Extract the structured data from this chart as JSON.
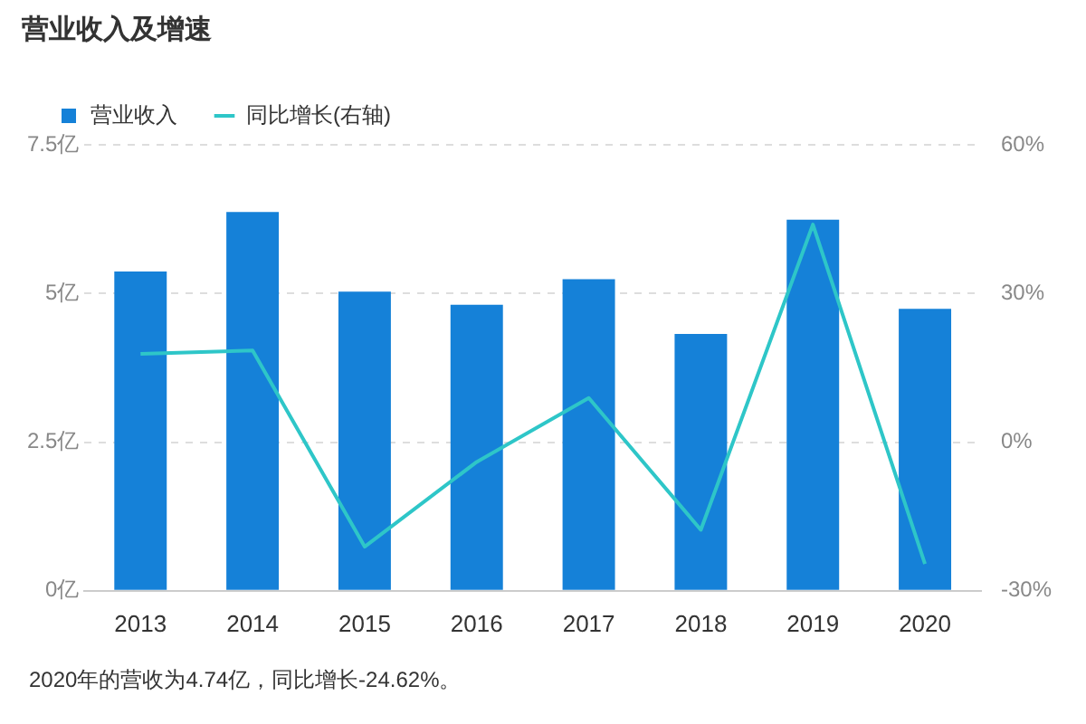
{
  "chart_data": {
    "type": "bar",
    "title": "营业收入及增速",
    "categories": [
      "2013",
      "2014",
      "2015",
      "2016",
      "2017",
      "2018",
      "2019",
      "2020"
    ],
    "series": [
      {
        "name": "营业收入",
        "color": "#1581d8",
        "values": [
          5.37,
          6.37,
          5.03,
          4.81,
          5.24,
          4.32,
          6.24,
          4.74
        ]
      },
      {
        "name": "同比增长(右轴)",
        "type": "line",
        "axis": "y2",
        "color": "#2ec6c8",
        "values": [
          17.8,
          18.5,
          -21.1,
          -4.0,
          8.9,
          -17.7,
          43.9,
          -24.6
        ]
      }
    ],
    "ylim": [
      0,
      7.5
    ],
    "yticks": [
      {
        "value": 0,
        "label": "0亿"
      },
      {
        "value": 2.5,
        "label": "2.5亿"
      },
      {
        "value": 5,
        "label": "5亿"
      },
      {
        "value": 7.5,
        "label": "7.5亿"
      }
    ],
    "y2lim": [
      -30,
      60
    ],
    "y2ticks": [
      {
        "value": -30,
        "label": "-30%"
      },
      {
        "value": 0,
        "label": "0%"
      },
      {
        "value": 30,
        "label": "30%"
      },
      {
        "value": 60,
        "label": "60%"
      }
    ],
    "grid": "y",
    "legend": "top left",
    "marker": "none",
    "line_style": "solid",
    "annotations": [
      "2020年的营收为4.74亿，同比增长-24.62%。"
    ]
  }
}
